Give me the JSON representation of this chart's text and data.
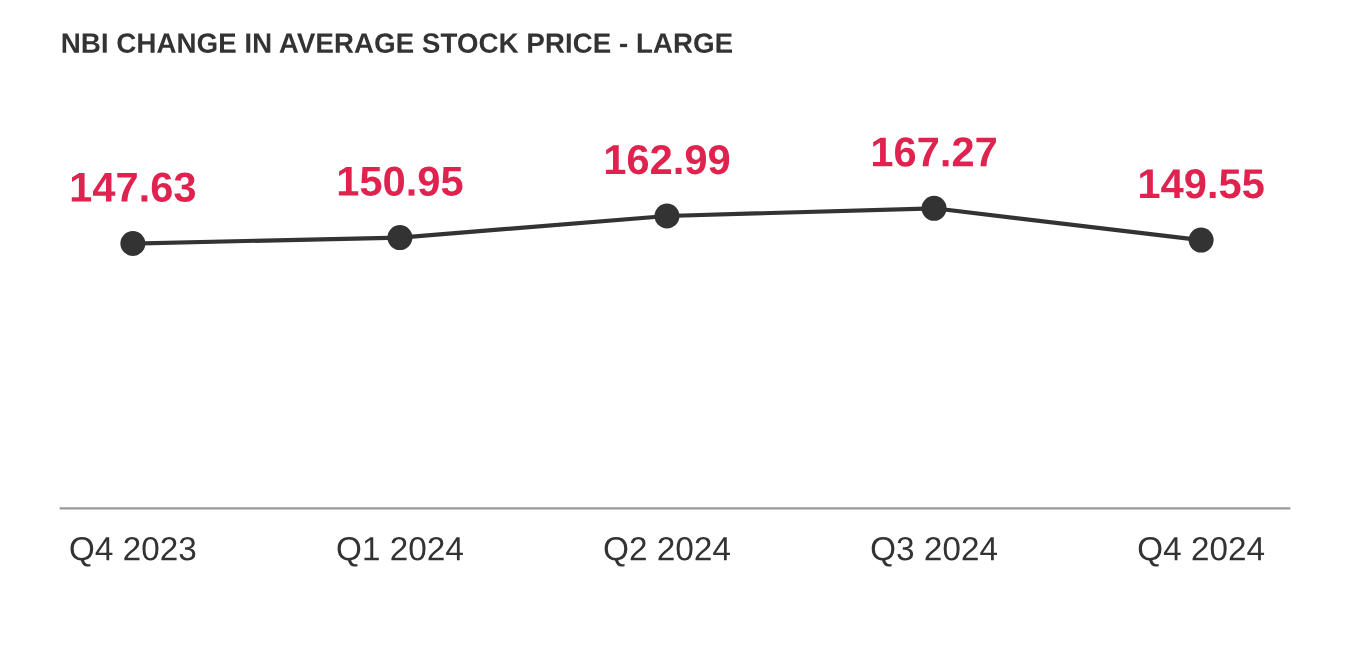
{
  "chart_data": {
    "type": "line",
    "title": "NBI CHANGE IN AVERAGE STOCK PRICE - LARGE",
    "categories": [
      "Q4 2023",
      "Q1 2024",
      "Q2 2024",
      "Q3 2024",
      "Q4 2024"
    ],
    "values": [
      147.63,
      150.95,
      162.99,
      167.27,
      149.55
    ],
    "color": "#333333",
    "marker": "circle",
    "line_style": "solid",
    "data_labels": true,
    "grid": false
  }
}
